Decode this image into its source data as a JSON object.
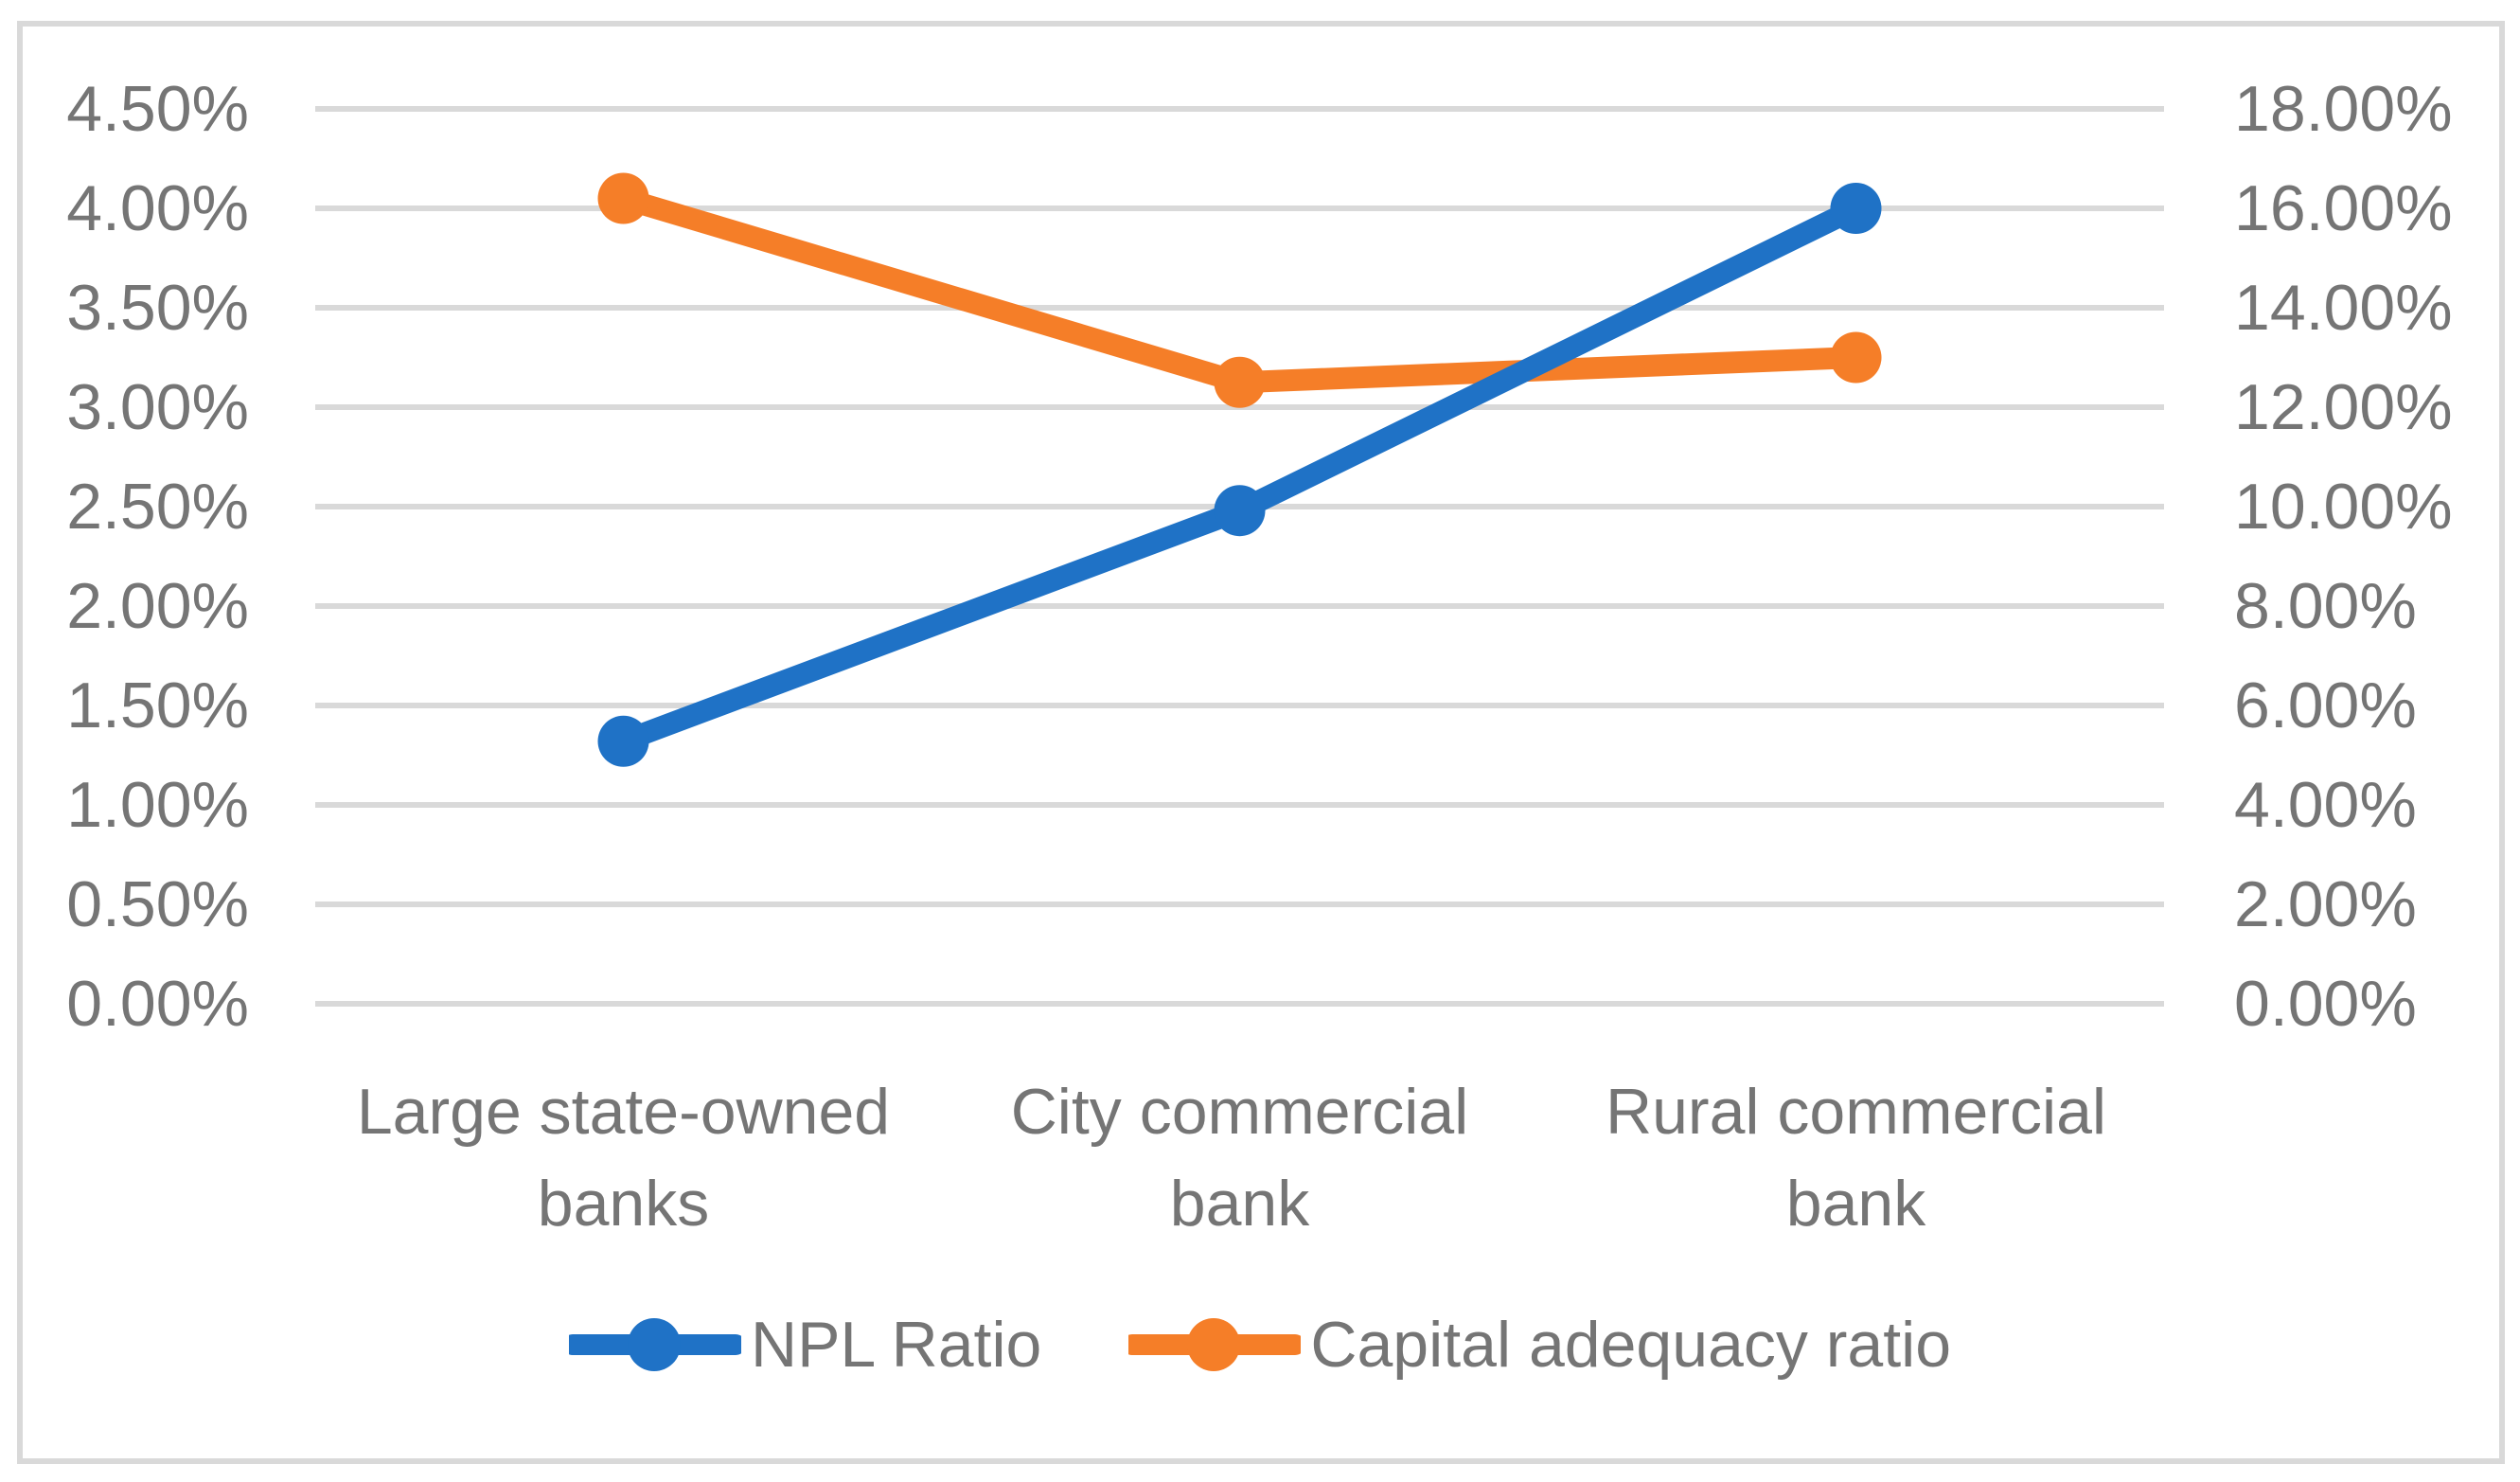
{
  "figure": {
    "background_color": "#FFFFFF",
    "frame_border_color": "#D9D9D9",
    "text_color": "#757575"
  },
  "chart_data": {
    "type": "line",
    "title": "",
    "categories": [
      "Large state-owned banks",
      "City commercial bank",
      "Rural commercial bank"
    ],
    "category_lines": [
      [
        "Large state-owned",
        "banks"
      ],
      [
        "City commercial",
        "bank"
      ],
      [
        "Rural commercial",
        "bank"
      ]
    ],
    "series": [
      {
        "name": "NPL Ratio",
        "axis": "left",
        "color": "#1F72C6",
        "marker": "circle",
        "values": [
          1.32,
          2.48,
          4.0
        ],
        "unit": "%"
      },
      {
        "name": "Capital adequacy ratio",
        "axis": "right",
        "color": "#F57E28",
        "marker": "circle",
        "values": [
          16.2,
          12.5,
          13.0
        ],
        "unit": "%"
      }
    ],
    "left_axis": {
      "min": 0,
      "max": 4.5,
      "step": 0.5,
      "tick_labels": [
        "4.50%",
        "4.00%",
        "3.50%",
        "3.00%",
        "2.50%",
        "2.00%",
        "1.50%",
        "1.00%",
        "0.50%",
        "0.00%"
      ]
    },
    "right_axis": {
      "min": 0,
      "max": 18,
      "step": 2,
      "tick_labels": [
        "18.00%",
        "16.00%",
        "14.00%",
        "12.00%",
        "10.00%",
        "8.00%",
        "6.00%",
        "4.00%",
        "2.00%",
        "0.00%"
      ]
    },
    "grid": true,
    "gridline_color": "#D9D9D9",
    "legend_position": "bottom"
  }
}
